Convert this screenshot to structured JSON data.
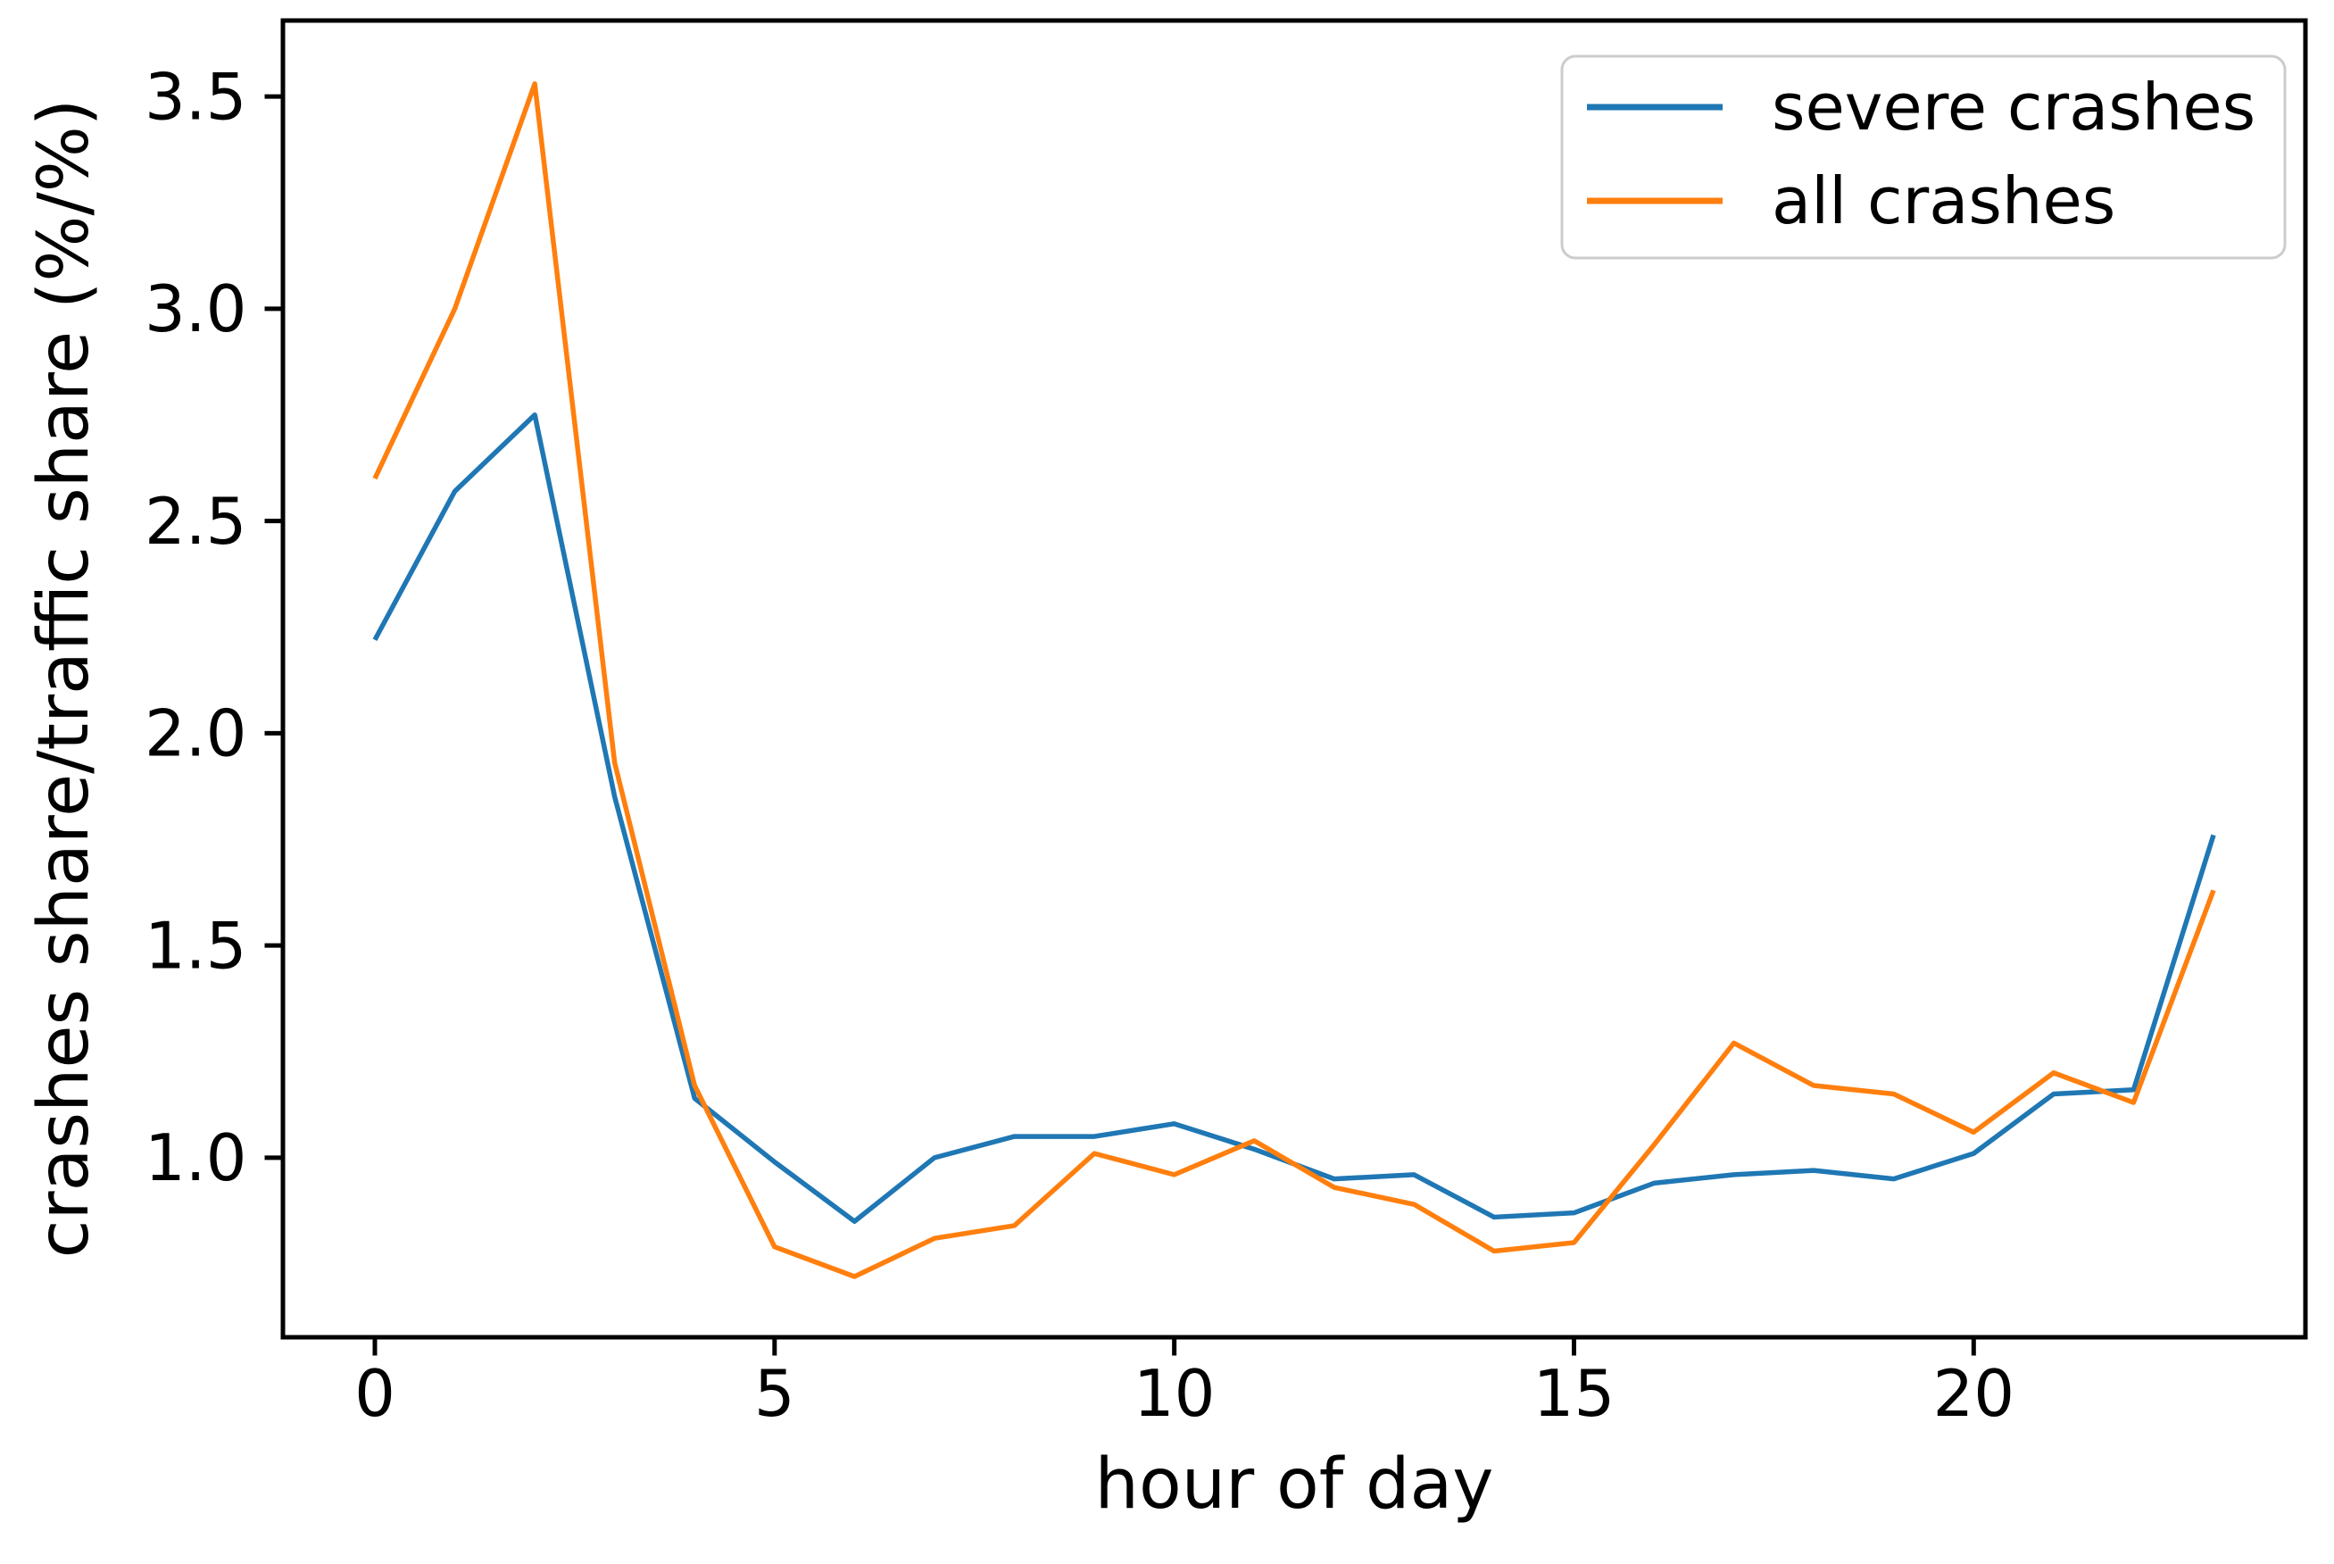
{
  "figure": {
    "background": "#ffffff",
    "spine_color": "#000000",
    "tick_color": "#000000",
    "text_color": "#000000"
  },
  "chart_data": {
    "type": "line",
    "title": "",
    "xlabel": "hour of day",
    "ylabel": "crashes share/traffic share (%/%)",
    "x": [
      0,
      1,
      2,
      3,
      4,
      5,
      6,
      7,
      8,
      9,
      10,
      11,
      12,
      13,
      14,
      15,
      16,
      17,
      18,
      19,
      20,
      21,
      22,
      23
    ],
    "series": [
      {
        "name": "severe crashes",
        "color": "#1f77b4",
        "values": [
          2.22,
          2.57,
          2.75,
          1.85,
          1.14,
          0.99,
          0.85,
          1.0,
          1.05,
          1.05,
          1.08,
          1.02,
          0.95,
          0.96,
          0.86,
          0.87,
          0.94,
          0.96,
          0.97,
          0.95,
          1.01,
          1.15,
          1.16,
          1.76
        ]
      },
      {
        "name": "all crashes",
        "color": "#ff7f0e",
        "values": [
          2.6,
          3.0,
          3.53,
          1.93,
          1.17,
          0.79,
          0.72,
          0.81,
          0.84,
          1.01,
          0.96,
          1.04,
          0.93,
          0.89,
          0.78,
          0.8,
          1.03,
          1.27,
          1.17,
          1.15,
          1.06,
          1.2,
          1.13,
          1.63
        ]
      }
    ],
    "xlim": [
      -1.15,
      24.15
    ],
    "ylim": [
      0.577,
      3.679
    ],
    "xticks": [
      0,
      5,
      10,
      15,
      20
    ],
    "xtick_labels": [
      "0",
      "5",
      "10",
      "15",
      "20"
    ],
    "yticks": [
      1.0,
      1.5,
      2.0,
      2.5,
      3.0,
      3.5
    ],
    "ytick_labels": [
      "1.0",
      "1.5",
      "2.0",
      "2.5",
      "3.0",
      "3.5"
    ],
    "grid": false,
    "legend": {
      "position": "upper right",
      "entries": [
        "severe crashes",
        "all crashes"
      ],
      "border_color": "#cccccc",
      "background": "#ffffff"
    }
  }
}
